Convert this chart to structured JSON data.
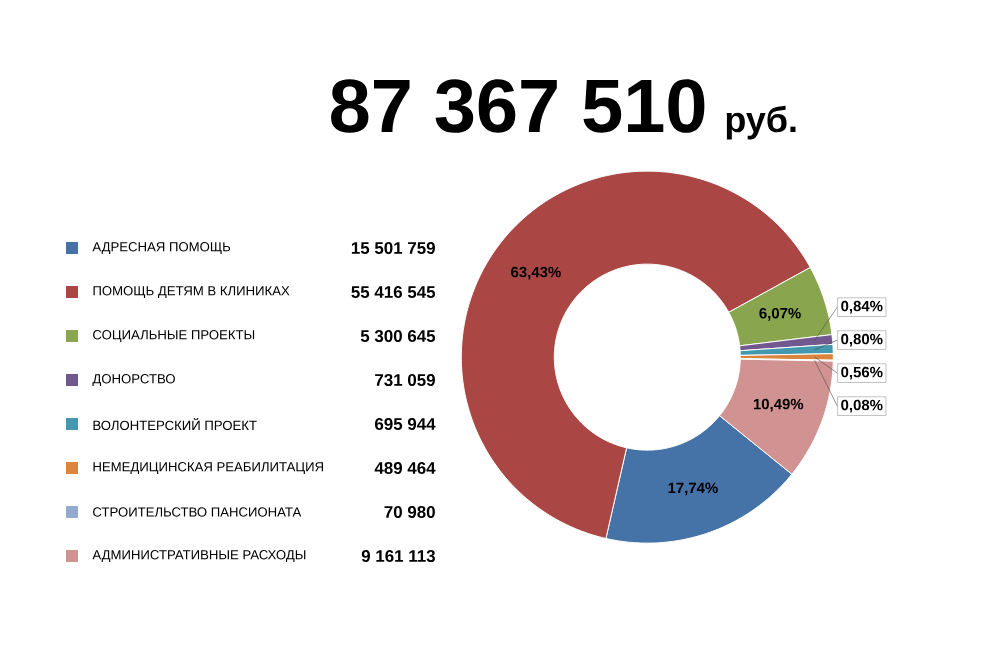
{
  "chart_data": {
    "type": "donut",
    "title": "87 367 510",
    "subtitle": "руб.",
    "categories": [
      "АДРЕСНАЯ ПОМОЩЬ",
      "ПОМОЩЬ ДЕТЯМ В КЛИНИКАХ",
      "СОЦИАЛЬНЫЕ ПРОЕКТЫ",
      "ДОНОРСТВО",
      "ВОЛОНТЕРСКИЙ ПРОЕКТ",
      "НЕМЕДИЦИНСКАЯ РЕАБИЛИТАЦИЯ",
      "СТРОИТЕЛЬСТВО ПАНСИОНАТА",
      "АДМИНИСТРАТИВНЫЕ РАСХОДЫ"
    ],
    "values": [
      17.74,
      63.43,
      6.07,
      0.84,
      0.8,
      0.56,
      0.08,
      10.49
    ],
    "annotations": [
      "15 501 759",
      "55 416 545",
      "5 300 645",
      "731 059",
      "695 944",
      "489 464",
      "70 980",
      "9 161 113"
    ],
    "colors": [
      "#4572a7",
      "#aa4643",
      "#89a54e",
      "#71588f",
      "#4198af",
      "#db843d",
      "#93a9cf",
      "#d19392"
    ],
    "value_labels": [
      "17,74%",
      "63,43%",
      "6,07%",
      "0,84%",
      "0,80%",
      "0,56%",
      "0,08%",
      "10,49%"
    ],
    "legend": "left"
  }
}
